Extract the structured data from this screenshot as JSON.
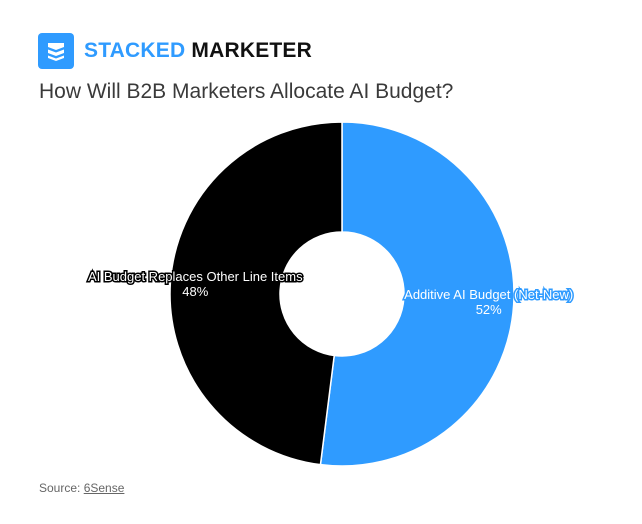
{
  "brand": {
    "name_part1": "STACKED",
    "name_part2": "MARKETER",
    "logo_color": "#2f9bff",
    "icon": "stacked-layers-icon"
  },
  "chart_data": {
    "type": "pie",
    "title": "How Will B2B Marketers Allocate AI Budget?",
    "donut": true,
    "slices": [
      {
        "label": "Additive AI Budget (Net-New)",
        "value": 52,
        "value_label": "52%",
        "color": "#2f9bff"
      },
      {
        "label": "AI Budget Replaces Other Line Items",
        "value": 48,
        "value_label": "48%",
        "color": "#000000"
      }
    ],
    "start_angle": "top",
    "direction": "clockwise"
  },
  "source": {
    "prefix": "Source: ",
    "link_text": "6Sense"
  }
}
